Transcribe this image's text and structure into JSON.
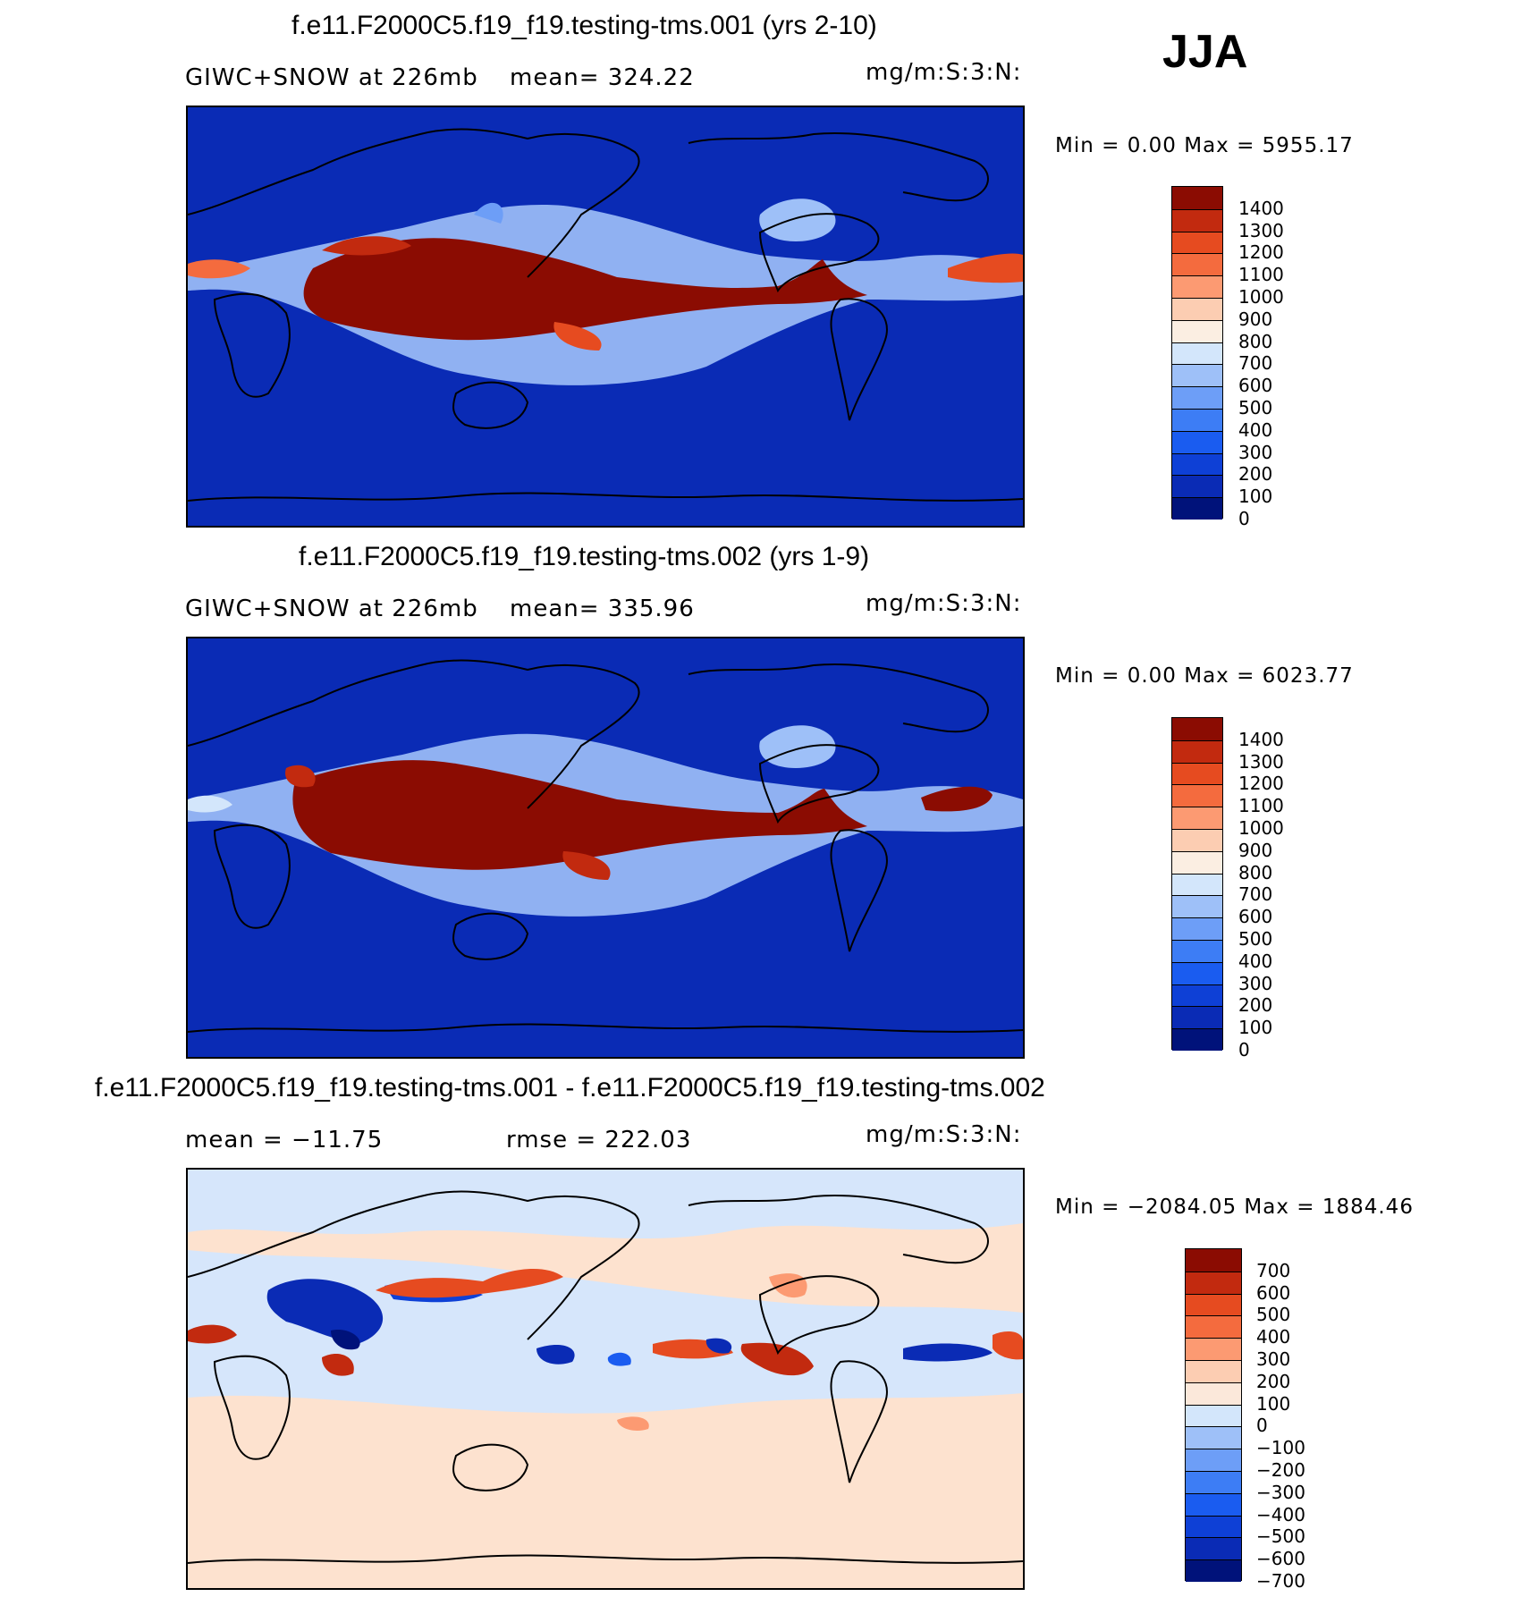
{
  "season": "JJA",
  "palette": {
    "ocean_base": "#0a2bb5",
    "diff_base": "#d6e6fb",
    "diff_alt": "#fde2cf",
    "seq": [
      "#00127a",
      "#0a2bb5",
      "#0e40d6",
      "#1a5cf0",
      "#3d7df5",
      "#6d9ef7",
      "#9ec0f8",
      "#d3e6fb",
      "#fbeee2",
      "#fccdb2",
      "#fc9a72",
      "#f46b3e",
      "#e64b20",
      "#c22a0f",
      "#8b0c02"
    ],
    "div": [
      "#00127a",
      "#0a2bb5",
      "#0e40d6",
      "#1a5cf0",
      "#3d7df5",
      "#6d9ef7",
      "#9ec0f8",
      "#d3e6fb",
      "#fbe8da",
      "#fccdb2",
      "#fc9a72",
      "#f46b3e",
      "#e64b20",
      "#c22a0f",
      "#8b0c02"
    ]
  },
  "panels": [
    {
      "title": "f.e11.F2000C5.f19_f19.testing-tms.001 (yrs 2-10)",
      "left_label": "GIWC+SNOW at 226mb",
      "middle_label": "mean= 324.22",
      "units": "mg/m:S:3:N:",
      "minmax": "Min =   0.00 Max = 5955.17",
      "colorbar_labels": [
        "1400",
        "1300",
        "1200",
        "1100",
        "1000",
        "900",
        "800",
        "700",
        "600",
        "500",
        "400",
        "300",
        "200",
        "100",
        "0"
      ],
      "kind": "seq"
    },
    {
      "title": "f.e11.F2000C5.f19_f19.testing-tms.002 (yrs 1-9)",
      "left_label": "GIWC+SNOW at 226mb",
      "middle_label": "mean= 335.96",
      "units": "mg/m:S:3:N:",
      "minmax": "Min =   0.00 Max = 6023.77",
      "colorbar_labels": [
        "1400",
        "1300",
        "1200",
        "1100",
        "1000",
        "900",
        "800",
        "700",
        "600",
        "500",
        "400",
        "300",
        "200",
        "100",
        "0"
      ],
      "kind": "seq"
    },
    {
      "title": "f.e11.F2000C5.f19_f19.testing-tms.001 - f.e11.F2000C5.f19_f19.testing-tms.002",
      "left_label": "mean = −11.75",
      "middle_label": "rmse = 222.03",
      "units": "mg/m:S:3:N:",
      "minmax": "Min = −2084.05 Max = 1884.46",
      "colorbar_labels": [
        "700",
        "600",
        "500",
        "400",
        "300",
        "200",
        "100",
        "0",
        "−100",
        "−200",
        "−300",
        "−400",
        "−500",
        "−600",
        "−700"
      ],
      "kind": "div"
    }
  ],
  "chart_data": [
    {
      "type": "heatmap",
      "title": "f.e11.F2000C5.f19_f19.testing-tms.001 (yrs 2-10)",
      "variable": "GIWC+SNOW at 226mb",
      "units": "mg/m:S:3:N:",
      "mean": 324.22,
      "min": 0.0,
      "max": 5955.17,
      "contour_levels": [
        0,
        100,
        200,
        300,
        400,
        500,
        600,
        700,
        800,
        900,
        1000,
        1100,
        1200,
        1300,
        1400
      ]
    },
    {
      "type": "heatmap",
      "title": "f.e11.F2000C5.f19_f19.testing-tms.002 (yrs 1-9)",
      "variable": "GIWC+SNOW at 226mb",
      "units": "mg/m:S:3:N:",
      "mean": 335.96,
      "min": 0.0,
      "max": 6023.77,
      "contour_levels": [
        0,
        100,
        200,
        300,
        400,
        500,
        600,
        700,
        800,
        900,
        1000,
        1100,
        1200,
        1300,
        1400
      ]
    },
    {
      "type": "heatmap",
      "title": "f.e11.F2000C5.f19_f19.testing-tms.001 - f.e11.F2000C5.f19_f19.testing-tms.002",
      "units": "mg/m:S:3:N:",
      "mean": -11.75,
      "rmse": 222.03,
      "min": -2084.05,
      "max": 1884.46,
      "contour_levels": [
        -700,
        -600,
        -500,
        -400,
        -300,
        -200,
        -100,
        0,
        100,
        200,
        300,
        400,
        500,
        600,
        700
      ]
    }
  ]
}
